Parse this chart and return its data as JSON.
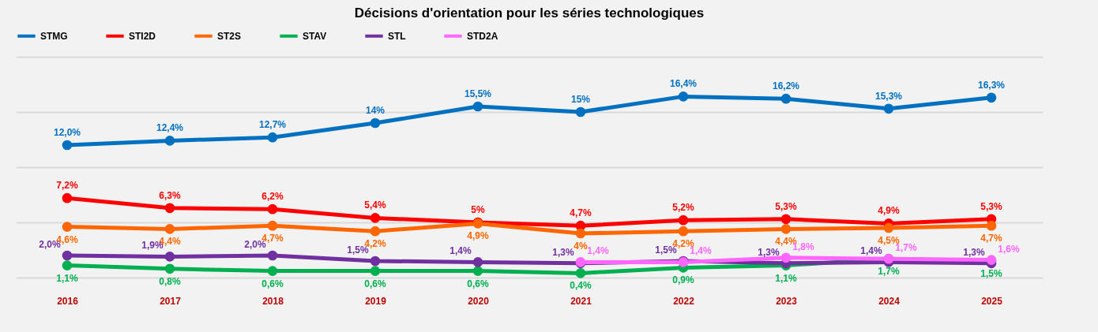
{
  "chart_data": {
    "type": "line",
    "title": "Décisions d'orientation pour les séries technologiques",
    "categories": [
      "2016",
      "2017",
      "2018",
      "2019",
      "2020",
      "2021",
      "2022",
      "2023",
      "2024",
      "2025"
    ],
    "series": [
      {
        "name": "STMG",
        "color": "#0070c0",
        "values": [
          12.0,
          12.4,
          12.7,
          14,
          15.5,
          15,
          16.4,
          16.2,
          15.3,
          16.3
        ],
        "value_labels": [
          "12,0%",
          "12,4%",
          "12,7%",
          "14%",
          "15,5%",
          "15%",
          "16,4%",
          "16,2%",
          "15,3%",
          "16,3%"
        ]
      },
      {
        "name": "STI2D",
        "color": "#ff0000",
        "values": [
          7.2,
          6.3,
          6.2,
          5.4,
          5,
          4.7,
          5.2,
          5.3,
          4.9,
          5.3
        ],
        "value_labels": [
          "7,2%",
          "6,3%",
          "6,2%",
          "5,4%",
          "5%",
          "4,7%",
          "5,2%",
          "5,3%",
          "4,9%",
          "5,3%"
        ]
      },
      {
        "name": "ST2S",
        "color": "#ff6600",
        "values": [
          4.6,
          4.4,
          4.7,
          4.2,
          4.9,
          4,
          4.2,
          4.4,
          4.5,
          4.7
        ],
        "value_labels": [
          "4,6%",
          "4,4%",
          "4,7%",
          "4,2%",
          "4,9%",
          "4%",
          "4,2%",
          "4,4%",
          "4,5%",
          "4,7%"
        ]
      },
      {
        "name": "STAV",
        "color": "#00b050",
        "values": [
          1.1,
          0.8,
          0.6,
          0.6,
          0.6,
          0.4,
          0.9,
          1.1,
          1.7,
          1.5
        ],
        "value_labels": [
          "1,1%",
          "0,8%",
          "0,6%",
          "0,6%",
          "0,6%",
          "0,4%",
          "0,9%",
          "1,1%",
          "1,7%",
          "1,5%"
        ]
      },
      {
        "name": "STL",
        "color": "#7030a0",
        "values": [
          2.0,
          1.9,
          2.0,
          1.5,
          1.4,
          1.3,
          1.5,
          1.3,
          1.4,
          1.3
        ],
        "value_labels": [
          "2,0%",
          "1,9%",
          "2,0%",
          "1,5%",
          "1,4%",
          "1,3%",
          "1,5%",
          "1,3%",
          "1,4%",
          "1,3%"
        ]
      },
      {
        "name": "STD2A",
        "color": "#ff66ff",
        "values": [
          null,
          null,
          null,
          null,
          null,
          1.4,
          1.4,
          1.8,
          1.7,
          1.6
        ],
        "value_labels": [
          null,
          null,
          null,
          null,
          null,
          "1,4%",
          "1,4%",
          "1,8%",
          "1,7%",
          "1,6%"
        ]
      }
    ],
    "ylim": [
      0,
      20
    ],
    "yticks": [
      {
        "value": 0,
        "label": null
      },
      {
        "value": 5,
        "label": null
      },
      {
        "value": 10,
        "label": null
      },
      {
        "value": 15,
        "label": null
      },
      {
        "value": 20,
        "label": null
      }
    ],
    "tick_labels": "x",
    "grid": "y",
    "legend": "top",
    "marker": "circle",
    "line_style": "solid"
  }
}
